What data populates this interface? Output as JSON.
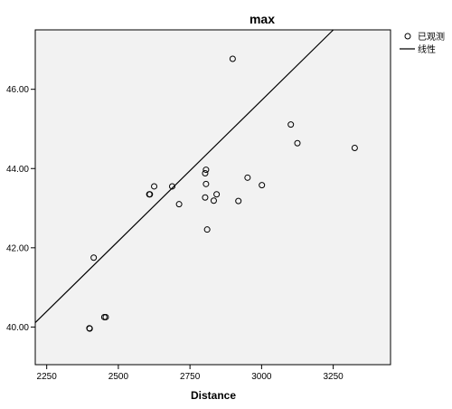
{
  "chart_data": {
    "type": "scatter",
    "title": "max",
    "xlabel": "Distance",
    "ylabel": "",
    "xlim": [
      2210,
      3450
    ],
    "ylim": [
      39.05,
      47.5
    ],
    "xticks": [
      2250,
      2500,
      2750,
      3000,
      3250
    ],
    "xtick_labels": [
      "2250",
      "2500",
      "2750",
      "3000",
      "3250"
    ],
    "yticks": [
      40,
      42,
      44,
      46
    ],
    "ytick_labels": [
      "40.00",
      "42.00",
      "44.00",
      "46.00"
    ],
    "grid": false,
    "legend_position": "top-right",
    "series": [
      {
        "name": "已观测",
        "marker": "open-circle",
        "points": [
          [
            2399,
            39.97
          ],
          [
            2400,
            39.96
          ],
          [
            2414,
            41.75
          ],
          [
            2451,
            40.25
          ],
          [
            2456,
            40.25
          ],
          [
            2608,
            43.35
          ],
          [
            2610,
            43.35
          ],
          [
            2625,
            43.55
          ],
          [
            2688,
            43.55
          ],
          [
            2712,
            43.1
          ],
          [
            2803,
            43.27
          ],
          [
            2803,
            43.88
          ],
          [
            2806,
            43.97
          ],
          [
            2806,
            43.61
          ],
          [
            2810,
            42.46
          ],
          [
            2833,
            43.19
          ],
          [
            2843,
            43.35
          ],
          [
            2899,
            46.77
          ],
          [
            2919,
            43.18
          ],
          [
            2951,
            43.77
          ],
          [
            3001,
            43.58
          ],
          [
            3102,
            45.11
          ],
          [
            3125,
            44.64
          ],
          [
            3325,
            44.52
          ]
        ]
      },
      {
        "name": "线性",
        "type": "line",
        "intercept": 24.41,
        "slope": 0.007104
      }
    ]
  }
}
